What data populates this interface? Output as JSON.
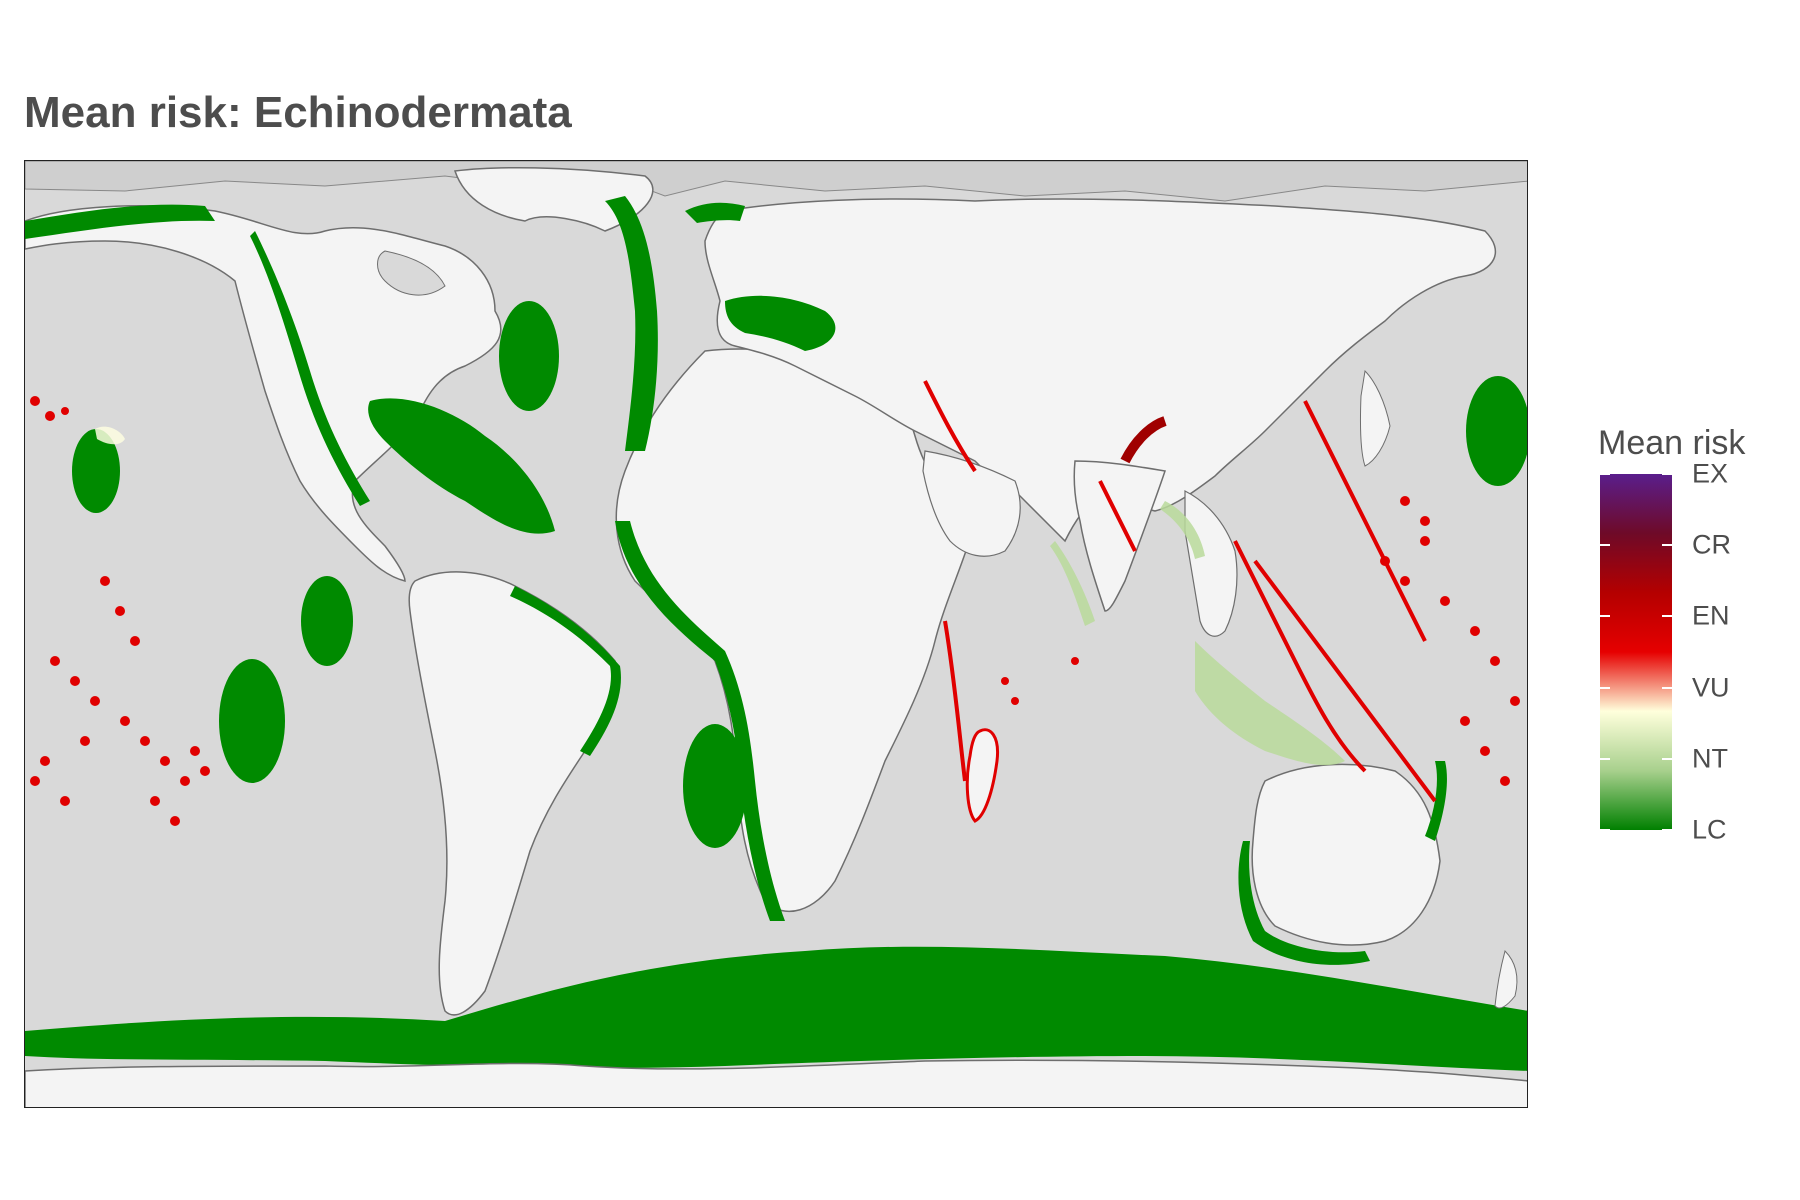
{
  "title": "Mean risk: Echinodermata",
  "legend": {
    "title": "Mean risk",
    "categories": [
      "EX",
      "CR",
      "EN",
      "VU",
      "NT",
      "LC"
    ],
    "gradient": [
      "#5a1e8c",
      "#6e0a28",
      "#b40000",
      "#e60000",
      "#ffffdc",
      "#a8d08d",
      "#008000"
    ]
  },
  "colors": {
    "ocean": "#d9d9d9",
    "land": "#f4f4f4",
    "coastline": "#6e6e6e",
    "low_concern": "#008a00",
    "high_risk": "#e00000",
    "intermediate": "#b9d99a"
  }
}
